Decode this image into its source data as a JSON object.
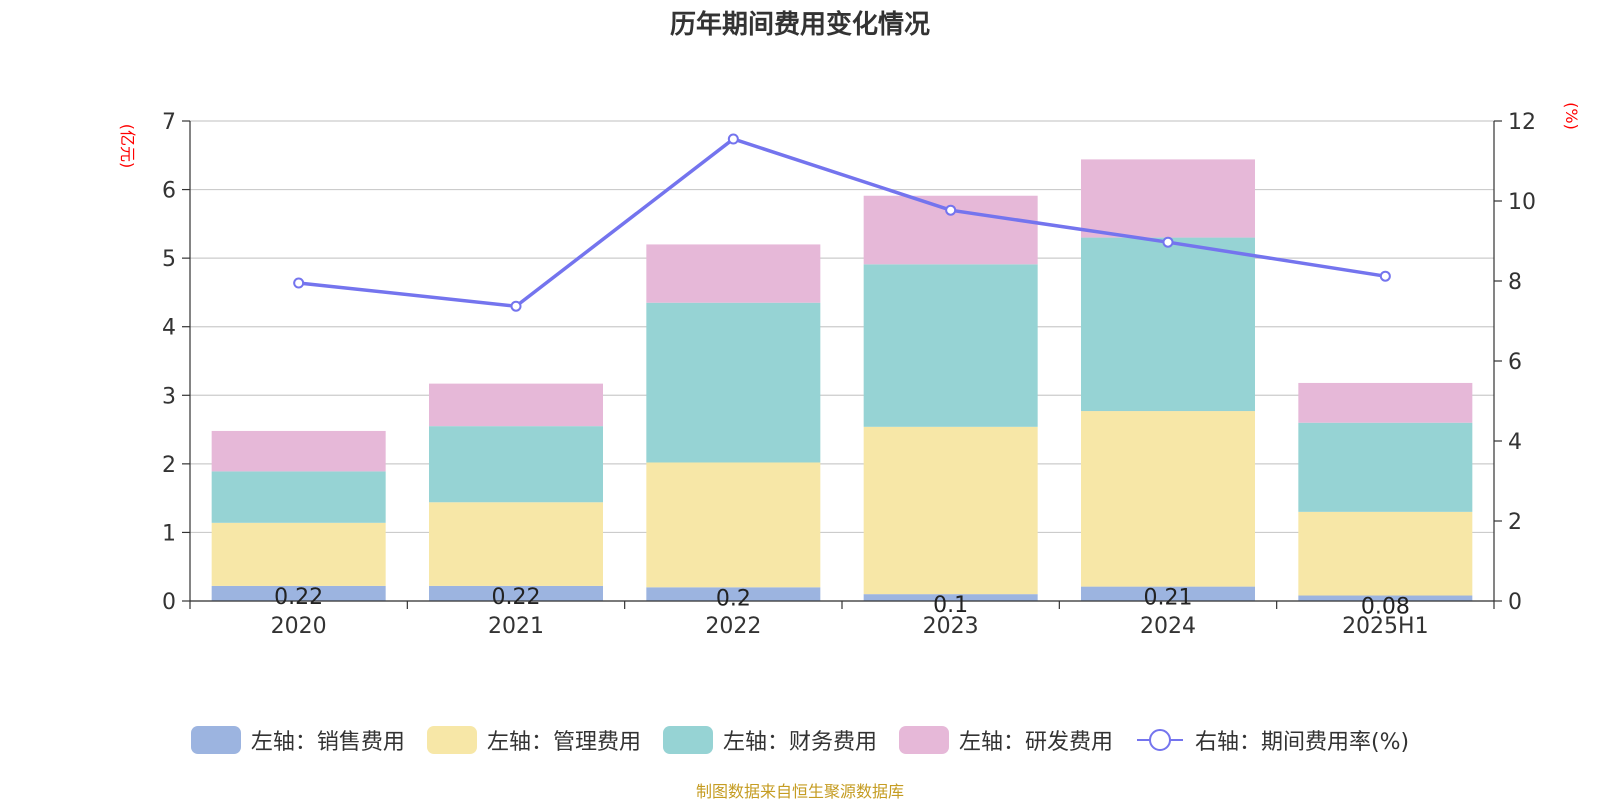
{
  "chart_data": {
    "type": "bar",
    "title": "历年期间费用变化情况",
    "categories": [
      "2020",
      "2021",
      "2022",
      "2023",
      "2024",
      "2025H1"
    ],
    "y_left_label": "(亿元)",
    "y_right_label": "(%)",
    "y_left_ticks": [
      "0",
      "1",
      "2",
      "3",
      "4",
      "5",
      "6",
      "7"
    ],
    "y_right_ticks": [
      "0",
      "2",
      "4",
      "6",
      "8",
      "10",
      "12"
    ],
    "ylim_left": [
      0,
      7
    ],
    "ylim_right": [
      0,
      12
    ],
    "grid": true,
    "legend_position": "bottom",
    "series": [
      {
        "name": "左轴：销售费用",
        "type": "bar",
        "color": "#9cb4e0",
        "values": [
          0.22,
          0.22,
          0.2,
          0.1,
          0.21,
          0.08
        ],
        "labels": [
          "0.22",
          "0.22",
          "0.2",
          "0.1",
          "0.21",
          "0.08"
        ]
      },
      {
        "name": "左轴：管理费用",
        "type": "bar",
        "color": "#f7e7a7",
        "values": [
          0.92,
          1.22,
          1.82,
          2.44,
          2.56,
          1.22
        ]
      },
      {
        "name": "左轴：财务费用",
        "type": "bar",
        "color": "#96d3d4",
        "values": [
          0.75,
          1.11,
          2.33,
          2.37,
          2.53,
          1.3
        ]
      },
      {
        "name": "左轴：研发费用",
        "type": "bar",
        "color": "#e6b8d8",
        "values": [
          0.59,
          0.62,
          0.85,
          1.0,
          1.14,
          0.58
        ]
      },
      {
        "name": "右轴：期间费用率(%)",
        "type": "line",
        "color": "#7474ee",
        "values": [
          7.95,
          7.37,
          11.55,
          9.77,
          8.97,
          8.12
        ]
      }
    ]
  },
  "source": "制图数据来自恒生聚源数据库"
}
